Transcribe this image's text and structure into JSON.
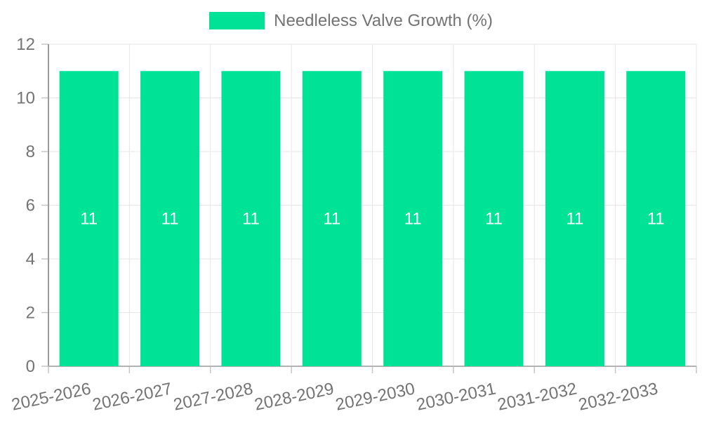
{
  "chart_data": {
    "type": "bar",
    "title": "Needleless Valve Growth (%)",
    "legend_label": "Needleless Valve Growth (%)",
    "legend_position": "top",
    "categories": [
      "2025-2026",
      "2026-2027",
      "2027-2028",
      "2028-2029",
      "2029-2030",
      "2030-2031",
      "2031-2032",
      "2032-2033"
    ],
    "values": [
      11,
      11,
      11,
      11,
      11,
      11,
      11,
      11
    ],
    "value_labels": [
      "11",
      "11",
      "11",
      "11",
      "11",
      "11",
      "11",
      "11"
    ],
    "xlabel": "",
    "ylabel": "",
    "ylim": [
      0,
      12
    ],
    "yticks": [
      0,
      2,
      4,
      6,
      8,
      10,
      12
    ],
    "grid": true,
    "colors": {
      "bar": "#00E396",
      "value_label": "#ffffff",
      "axis_text": "#737373",
      "legend_text": "#737373",
      "gridline": "#e6e6e6",
      "y_axis_line": "#9a9a9a",
      "x_axis_line": "#b3b3b3",
      "tick": "#c6c6c6",
      "background": "#ffffff"
    }
  }
}
